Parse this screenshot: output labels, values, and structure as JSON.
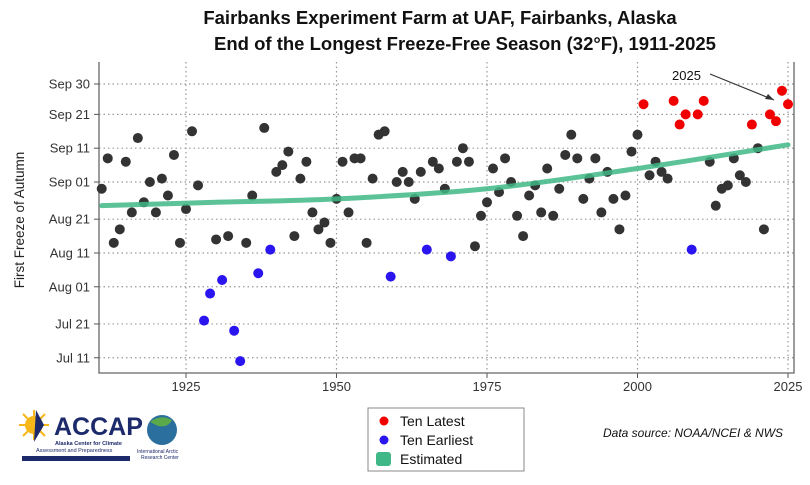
{
  "chart_data": {
    "type": "scatter",
    "title": [
      "Fairbanks Experiment Farm at UAF, Fairbanks, Alaska",
      "End of the Longest Freeze-Free Season (32°F), 1911-2025"
    ],
    "xlabel": "",
    "ylabel": "First Freeze of Autumn",
    "xlim": [
      1910.5,
      2026.3
    ],
    "ylim": [
      "Jul 07",
      "Oct 04"
    ],
    "x_ticks": [
      "1925",
      "1950",
      "1975",
      "2000",
      "2025"
    ],
    "y_ticks": [
      "Sep 30",
      "Sep 21",
      "Sep 11",
      "Sep 01",
      "Aug 21",
      "Aug 11",
      "Aug 01",
      "Jul 21",
      "Jul 11"
    ],
    "grid": true,
    "legend_placement": "bottom-center",
    "legend": [
      {
        "label": "Ten Latest",
        "color": "#f00000",
        "marker": "dot"
      },
      {
        "label": "Ten Earliest",
        "color": "#2a14f0",
        "marker": "dot"
      },
      {
        "label": "Estimated",
        "color": "#3fb786",
        "marker": "square"
      }
    ],
    "annotation": {
      "text": "2025",
      "year": 2025
    },
    "colors": {
      "normal": "#333333",
      "latest": "#f00000",
      "earliest": "#2a14f0",
      "trend": "#3fb786"
    },
    "points": [
      [
        1911,
        "Aug 30",
        "n"
      ],
      [
        1912,
        "Sep 08",
        "n"
      ],
      [
        1913,
        "Aug 14",
        "n"
      ],
      [
        1914,
        "Aug 18",
        "n"
      ],
      [
        1915,
        "Sep 07",
        "n"
      ],
      [
        1916,
        "Aug 23",
        "n"
      ],
      [
        1917,
        "Sep 14",
        "n"
      ],
      [
        1918,
        "Aug 26",
        "n"
      ],
      [
        1919,
        "Sep 01",
        "n"
      ],
      [
        1920,
        "Aug 23",
        "n"
      ],
      [
        1921,
        "Sep 02",
        "n"
      ],
      [
        1922,
        "Aug 28",
        "n"
      ],
      [
        1923,
        "Sep 09",
        "n"
      ],
      [
        1924,
        "Aug 14",
        "n"
      ],
      [
        1925,
        "Aug 24",
        "n"
      ],
      [
        1926,
        "Sep 16",
        "n"
      ],
      [
        1927,
        "Aug 31",
        "n"
      ],
      [
        1928,
        "Jul 22",
        "e"
      ],
      [
        1929,
        "Jul 30",
        "e"
      ],
      [
        1930,
        "Aug 15",
        "n"
      ],
      [
        1931,
        "Aug 03",
        "e"
      ],
      [
        1932,
        "Aug 16",
        "n"
      ],
      [
        1933,
        "Jul 19",
        "e"
      ],
      [
        1934,
        "Jul 10",
        "e"
      ],
      [
        1935,
        "Aug 14",
        "n"
      ],
      [
        1936,
        "Aug 28",
        "n"
      ],
      [
        1937,
        "Aug 05",
        "e"
      ],
      [
        1938,
        "Sep 17",
        "n"
      ],
      [
        1939,
        "Aug 12",
        "e"
      ],
      [
        1940,
        "Sep 04",
        "n"
      ],
      [
        1941,
        "Sep 06",
        "n"
      ],
      [
        1942,
        "Sep 10",
        "n"
      ],
      [
        1943,
        "Aug 16",
        "n"
      ],
      [
        1944,
        "Sep 02",
        "n"
      ],
      [
        1945,
        "Sep 07",
        "n"
      ],
      [
        1946,
        "Aug 23",
        "n"
      ],
      [
        1947,
        "Aug 18",
        "n"
      ],
      [
        1948,
        "Aug 20",
        "n"
      ],
      [
        1949,
        "Aug 14",
        "n"
      ],
      [
        1950,
        "Aug 27",
        "n"
      ],
      [
        1951,
        "Sep 07",
        "n"
      ],
      [
        1952,
        "Aug 23",
        "n"
      ],
      [
        1953,
        "Sep 08",
        "n"
      ],
      [
        1954,
        "Sep 08",
        "n"
      ],
      [
        1955,
        "Aug 14",
        "n"
      ],
      [
        1956,
        "Sep 02",
        "n"
      ],
      [
        1957,
        "Sep 15",
        "n"
      ],
      [
        1958,
        "Sep 16",
        "n"
      ],
      [
        1959,
        "Aug 04",
        "e"
      ],
      [
        1960,
        "Sep 01",
        "n"
      ],
      [
        1961,
        "Sep 04",
        "n"
      ],
      [
        1962,
        "Sep 01",
        "n"
      ],
      [
        1963,
        "Aug 27",
        "n"
      ],
      [
        1964,
        "Sep 04",
        "n"
      ],
      [
        1965,
        "Aug 12",
        "e"
      ],
      [
        1966,
        "Sep 07",
        "n"
      ],
      [
        1967,
        "Sep 05",
        "n"
      ],
      [
        1968,
        "Aug 30",
        "n"
      ],
      [
        1969,
        "Aug 10",
        "e"
      ],
      [
        1970,
        "Sep 07",
        "n"
      ],
      [
        1971,
        "Sep 11",
        "n"
      ],
      [
        1972,
        "Sep 07",
        "n"
      ],
      [
        1973,
        "Aug 13",
        "n"
      ],
      [
        1974,
        "Aug 22",
        "n"
      ],
      [
        1975,
        "Aug 26",
        "n"
      ],
      [
        1976,
        "Sep 05",
        "n"
      ],
      [
        1977,
        "Aug 29",
        "n"
      ],
      [
        1978,
        "Sep 08",
        "n"
      ],
      [
        1979,
        "Sep 01",
        "n"
      ],
      [
        1980,
        "Aug 22",
        "n"
      ],
      [
        1981,
        "Aug 16",
        "n"
      ],
      [
        1982,
        "Aug 28",
        "n"
      ],
      [
        1983,
        "Aug 31",
        "n"
      ],
      [
        1984,
        "Aug 23",
        "n"
      ],
      [
        1985,
        "Sep 05",
        "n"
      ],
      [
        1986,
        "Aug 22",
        "n"
      ],
      [
        1987,
        "Aug 30",
        "n"
      ],
      [
        1988,
        "Sep 09",
        "n"
      ],
      [
        1989,
        "Sep 15",
        "n"
      ],
      [
        1990,
        "Sep 08",
        "n"
      ],
      [
        1991,
        "Aug 27",
        "n"
      ],
      [
        1992,
        "Sep 02",
        "n"
      ],
      [
        1993,
        "Sep 08",
        "n"
      ],
      [
        1994,
        "Aug 23",
        "n"
      ],
      [
        1995,
        "Sep 04",
        "n"
      ],
      [
        1996,
        "Aug 27",
        "n"
      ],
      [
        1997,
        "Aug 18",
        "n"
      ],
      [
        1998,
        "Aug 28",
        "n"
      ],
      [
        1999,
        "Sep 10",
        "n"
      ],
      [
        2000,
        "Sep 15",
        "n"
      ],
      [
        2001,
        "Sep 24",
        "l"
      ],
      [
        2002,
        "Sep 03",
        "n"
      ],
      [
        2003,
        "Sep 07",
        "n"
      ],
      [
        2004,
        "Sep 04",
        "n"
      ],
      [
        2005,
        "Sep 02",
        "n"
      ],
      [
        2006,
        "Sep 25",
        "l"
      ],
      [
        2007,
        "Sep 18",
        "l"
      ],
      [
        2008,
        "Sep 21",
        "l"
      ],
      [
        2009,
        "Aug 12",
        "e"
      ],
      [
        2010,
        "Sep 21",
        "l"
      ],
      [
        2011,
        "Sep 25",
        "l"
      ],
      [
        2012,
        "Sep 07",
        "n"
      ],
      [
        2013,
        "Aug 25",
        "n"
      ],
      [
        2014,
        "Aug 30",
        "n"
      ],
      [
        2015,
        "Aug 31",
        "n"
      ],
      [
        2016,
        "Sep 08",
        "n"
      ],
      [
        2017,
        "Sep 03",
        "n"
      ],
      [
        2018,
        "Sep 01",
        "n"
      ],
      [
        2019,
        "Sep 18",
        "l"
      ],
      [
        2020,
        "Sep 11",
        "n"
      ],
      [
        2021,
        "Aug 18",
        "n"
      ],
      [
        2022,
        "Sep 21",
        "l"
      ],
      [
        2023,
        "Sep 19",
        "l"
      ],
      [
        2024,
        "Sep 28",
        "l"
      ],
      [
        2025,
        "Sep 24",
        "l"
      ]
    ],
    "trend": [
      [
        1911,
        "Aug 25"
      ],
      [
        1930,
        "Aug 26"
      ],
      [
        1950,
        "Aug 27"
      ],
      [
        1975,
        "Aug 30"
      ],
      [
        2000,
        "Sep 05"
      ],
      [
        2025,
        "Sep 12"
      ]
    ]
  },
  "footer": {
    "source": "Data source: NOAA/NCEI & NWS",
    "logo_accap": "ACCAP",
    "logo_accap_sub1": "Alaska Center for Climate",
    "logo_accap_sub2": "Assessment and Preparedness",
    "logo_iarc1": "International Arctic",
    "logo_iarc2": "Research Center"
  }
}
